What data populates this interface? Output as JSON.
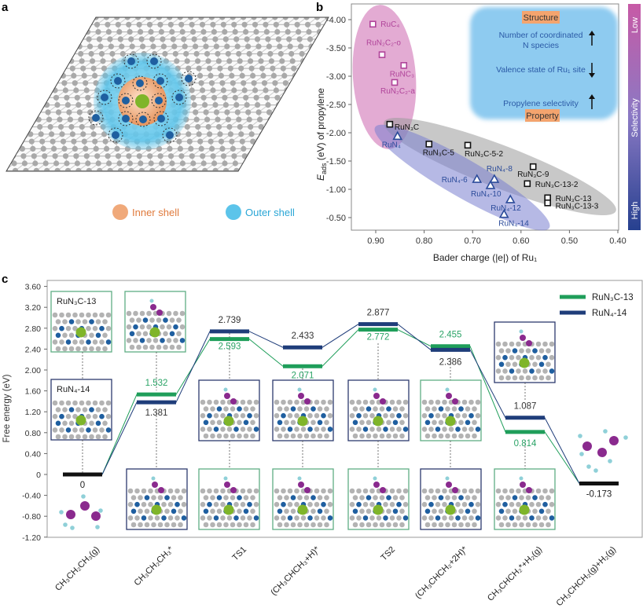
{
  "panels": {
    "a": "a",
    "b": "b",
    "c": "c"
  },
  "panel_a": {
    "legend": [
      {
        "label": "Inner shell",
        "color": "#f0a97a"
      },
      {
        "label": "Outer shell",
        "color": "#5cc4ea"
      }
    ]
  },
  "chart_data": [
    {
      "panel": "b",
      "type": "scatter",
      "xlabel": "Bader charge (|e|) of Ru₁",
      "ylabel_parts": {
        "main": "E",
        "sub": "ads",
        "rest": " (eV) of propylene"
      },
      "xlim": [
        0.95,
        0.4
      ],
      "ylim": [
        -4.1,
        -0.3
      ],
      "x_reversed": true,
      "y_reversed": true,
      "xticks": [
        "0.90",
        "0.80",
        "0.70",
        "0.60",
        "0.50",
        "0.40"
      ],
      "yticks": [
        "-4.00",
        "-3.50",
        "-3.00",
        "-2.50",
        "-2.00",
        "-1.50",
        "-1.00",
        "-0.50"
      ],
      "groups": [
        {
          "marker": "square",
          "color": "#b0449a",
          "points": [
            {
              "label": "RuC₄",
              "x": 0.906,
              "y": -3.92
            },
            {
              "label": "RuN₂C₂-o",
              "x": 0.887,
              "y": -3.38
            },
            {
              "label": "RuNC₃",
              "x": 0.842,
              "y": -3.19
            },
            {
              "label": "RuN₂C₂-a",
              "x": 0.861,
              "y": -2.89
            }
          ]
        },
        {
          "marker": "square",
          "color": "#111111",
          "points": [
            {
              "label": "RuN₃C",
              "x": 0.871,
              "y": -2.15
            },
            {
              "label": "RuN₃C-5",
              "x": 0.79,
              "y": -1.8
            },
            {
              "label": "RuN₃C-5-2",
              "x": 0.71,
              "y": -1.78
            },
            {
              "label": "RuN₃C-9",
              "x": 0.575,
              "y": -1.4
            },
            {
              "label": "RuN₃C-13-2",
              "x": 0.587,
              "y": -1.1
            },
            {
              "label": "RuN₃C-13",
              "x": 0.545,
              "y": -0.85
            },
            {
              "label": "RuN₃C-13-3",
              "x": 0.545,
              "y": -0.76
            }
          ]
        },
        {
          "marker": "triangle",
          "color": "#2b4b9a",
          "points": [
            {
              "label": "RuN₄",
              "x": 0.855,
              "y": -1.94
            },
            {
              "label": "RuN₄-6",
              "x": 0.691,
              "y": -1.18
            },
            {
              "label": "RuN₄-8",
              "x": 0.655,
              "y": -1.18
            },
            {
              "label": "RuN₄-10",
              "x": 0.663,
              "y": -1.07
            },
            {
              "label": "RuN₄-12",
              "x": 0.622,
              "y": -0.82
            },
            {
              "label": "RuN₄-14",
              "x": 0.635,
              "y": -0.56
            }
          ]
        }
      ],
      "colorbar": {
        "title": "Selectivity",
        "low": "Low",
        "high": "High",
        "top_color": "#c75aa6",
        "bottom_color": "#26408f"
      },
      "infobox": {
        "structure": "Structure",
        "property": "Property",
        "rows": [
          {
            "text": [
              "Number of coordinated",
              "N species"
            ],
            "arrow": "up"
          },
          {
            "text": [
              "Valence state of Ru₁ site"
            ],
            "arrow": "down"
          },
          {
            "text": [
              "Propylene selectivity"
            ],
            "arrow": "up"
          }
        ]
      }
    },
    {
      "panel": "c",
      "type": "line",
      "ylabel": "Free energy (eV)",
      "ylim": [
        -1.2,
        3.6
      ],
      "yticks": [
        "3.60",
        "3.20",
        "2.80",
        "2.40",
        "2.00",
        "1.60",
        "1.20",
        "0.80",
        "0.40",
        "0",
        "-0.40",
        "-0.80",
        "-1.20"
      ],
      "categories": [
        "CH₃CH₂CH₃(g)",
        "CH₃CH₂CH₃*",
        "TS1",
        "(CH₃CHCH₃+H)*",
        "TS2",
        "(CH₃CHCH₂+2H)*",
        "CH₃CHCH₂*+H₂(g)",
        "CH₃CHCH₂(g)+H₂(g)"
      ],
      "shared_levels": [
        {
          "index": 0,
          "value": 0,
          "label": "0"
        },
        {
          "index": 7,
          "value": -0.173,
          "label": "-0.173"
        }
      ],
      "series": [
        {
          "name": "RuN₃C-13",
          "color": "#1f9e5a",
          "values": [
            0,
            1.532,
            2.593,
            2.071,
            2.772,
            2.455,
            0.814,
            -0.173
          ],
          "labels": [
            "",
            "1.532",
            "2.593",
            "2.071",
            "2.772",
            "2.455",
            "0.814",
            ""
          ]
        },
        {
          "name": "RuN₄-14",
          "color": "#1f3d7a",
          "values": [
            0,
            1.381,
            2.739,
            2.433,
            2.877,
            2.386,
            1.087,
            -0.173
          ],
          "labels": [
            "",
            "1.381",
            "2.739",
            "2.433",
            "2.877",
            "2.386",
            "1.087",
            ""
          ]
        }
      ],
      "legend_position": "top-right",
      "inset_labels": {
        "top": "RuN₃C-13",
        "bottom": "RuN₄-14"
      }
    }
  ]
}
